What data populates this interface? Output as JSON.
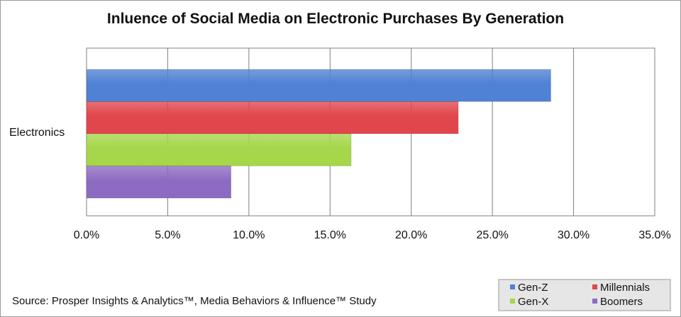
{
  "chart_data": {
    "type": "bar",
    "orientation": "horizontal",
    "title": "Inluence of Social Media on Electronic Purchases By Generation",
    "categories": [
      "Electronics"
    ],
    "series": [
      {
        "name": "Gen-Z",
        "values": [
          28.6
        ],
        "color": "#4f81d4"
      },
      {
        "name": "Millennials",
        "values": [
          22.9
        ],
        "color": "#e0464c"
      },
      {
        "name": "Gen-X",
        "values": [
          16.3
        ],
        "color": "#a6d64a"
      },
      {
        "name": "Boomers",
        "values": [
          8.9
        ],
        "color": "#8e6bc2"
      }
    ],
    "xlim": [
      0,
      35
    ],
    "xticks": [
      "0.0%",
      "5.0%",
      "10.0%",
      "15.0%",
      "20.0%",
      "25.0%",
      "30.0%",
      "35.0%"
    ],
    "grid": true,
    "legend_position": "bottom-right"
  },
  "source_note": "Source: Prosper Insights & Analytics™, Media Behaviors & Influence™ Study",
  "colors": {
    "gridline": "#7f7f7f",
    "legend_border": "#9a9a9a",
    "legend_bg": "#e6e6e6"
  }
}
